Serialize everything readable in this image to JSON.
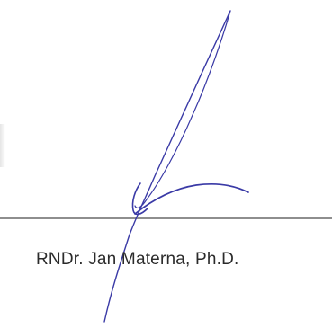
{
  "signature_block": {
    "signer_name": "RNDr. Jan Materna, Ph.D.",
    "ink_color": "#3a3aa6",
    "line_color": "#8e8e8e",
    "text_color": "#2b2b2b"
  }
}
